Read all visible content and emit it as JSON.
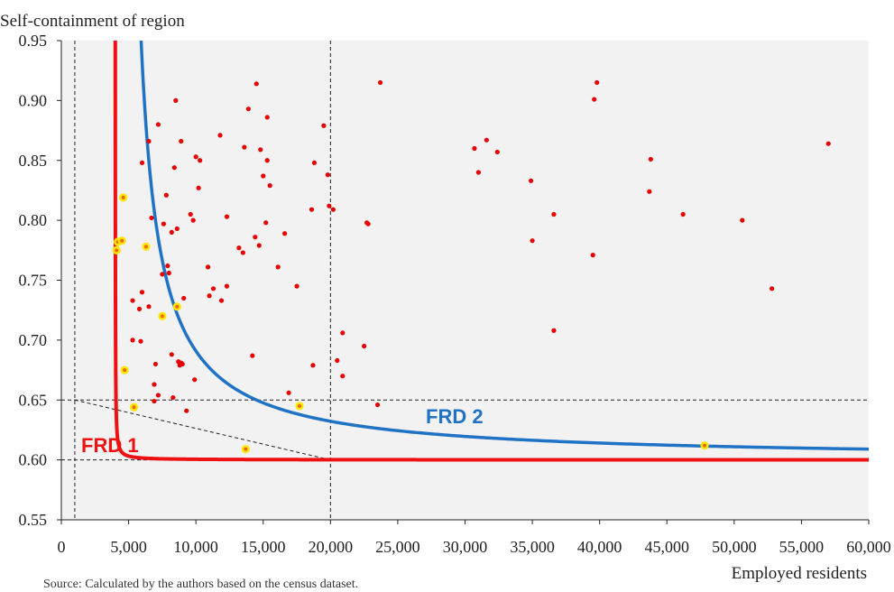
{
  "chart_data": {
    "type": "scatter",
    "ylabel": "Self-containment of region",
    "xlabel": "Employed residents",
    "xlim": [
      0,
      60000
    ],
    "ylim": [
      0.55,
      0.95
    ],
    "x_ticks": [
      0,
      5000,
      10000,
      15000,
      20000,
      25000,
      30000,
      35000,
      40000,
      45000,
      50000,
      55000,
      60000
    ],
    "x_tick_labels": [
      "0",
      "5,000",
      "10,000",
      "15,000",
      "20,000",
      "25,000",
      "30,000",
      "35,000",
      "40,000",
      "45,000",
      "50,000",
      "55,000",
      "60,000"
    ],
    "y_ticks": [
      0.55,
      0.6,
      0.65,
      0.7,
      0.75,
      0.8,
      0.85,
      0.9,
      0.95
    ],
    "y_tick_labels": [
      "0.55",
      "0.60",
      "0.65",
      "0.70",
      "0.75",
      "0.80",
      "0.85",
      "0.90",
      "0.95"
    ],
    "plot_background": "#f2f2f2",
    "reference_lines": {
      "horizontal": [
        0.6,
        0.65
      ],
      "vertical": [
        1000,
        20000
      ],
      "diagonal": [
        [
          1000,
          0.65
        ],
        [
          20000,
          0.6
        ]
      ]
    },
    "curves": [
      {
        "label": "FRD 1",
        "color": "#ee1111",
        "asymptote_x": 4000,
        "asymptote_y": 0.6,
        "k": 3.2,
        "x_end": 60000
      },
      {
        "label": "FRD 2",
        "color": "#1f72c4",
        "asymptote_x": 4500,
        "asymptote_y": 0.6,
        "k": 500,
        "x_end": 60000
      }
    ],
    "points": [
      {
        "x": 8500,
        "y": 0.9
      },
      {
        "x": 7200,
        "y": 0.88
      },
      {
        "x": 6500,
        "y": 0.866
      },
      {
        "x": 6000,
        "y": 0.848
      },
      {
        "x": 8400,
        "y": 0.844
      },
      {
        "x": 8900,
        "y": 0.866
      },
      {
        "x": 10000,
        "y": 0.853
      },
      {
        "x": 10300,
        "y": 0.85
      },
      {
        "x": 10200,
        "y": 0.827
      },
      {
        "x": 11800,
        "y": 0.871
      },
      {
        "x": 13600,
        "y": 0.861
      },
      {
        "x": 13900,
        "y": 0.893
      },
      {
        "x": 14500,
        "y": 0.914
      },
      {
        "x": 14800,
        "y": 0.859
      },
      {
        "x": 15300,
        "y": 0.886
      },
      {
        "x": 15300,
        "y": 0.85
      },
      {
        "x": 15000,
        "y": 0.837
      },
      {
        "x": 15500,
        "y": 0.829
      },
      {
        "x": 18800,
        "y": 0.848
      },
      {
        "x": 19500,
        "y": 0.879
      },
      {
        "x": 19800,
        "y": 0.838
      },
      {
        "x": 19900,
        "y": 0.812
      },
      {
        "x": 20200,
        "y": 0.809
      },
      {
        "x": 18600,
        "y": 0.809
      },
      {
        "x": 23700,
        "y": 0.915
      },
      {
        "x": 30700,
        "y": 0.86
      },
      {
        "x": 31600,
        "y": 0.867
      },
      {
        "x": 32400,
        "y": 0.857
      },
      {
        "x": 31000,
        "y": 0.84
      },
      {
        "x": 34900,
        "y": 0.833
      },
      {
        "x": 39600,
        "y": 0.901
      },
      {
        "x": 39800,
        "y": 0.915
      },
      {
        "x": 43800,
        "y": 0.851
      },
      {
        "x": 43700,
        "y": 0.824
      },
      {
        "x": 57000,
        "y": 0.864
      },
      {
        "x": 6700,
        "y": 0.802
      },
      {
        "x": 7600,
        "y": 0.797
      },
      {
        "x": 7800,
        "y": 0.821
      },
      {
        "x": 8200,
        "y": 0.79
      },
      {
        "x": 8600,
        "y": 0.793
      },
      {
        "x": 9600,
        "y": 0.805
      },
      {
        "x": 9800,
        "y": 0.8
      },
      {
        "x": 12300,
        "y": 0.803
      },
      {
        "x": 13200,
        "y": 0.777
      },
      {
        "x": 13500,
        "y": 0.773
      },
      {
        "x": 14400,
        "y": 0.786
      },
      {
        "x": 14700,
        "y": 0.779
      },
      {
        "x": 15200,
        "y": 0.798
      },
      {
        "x": 16600,
        "y": 0.789
      },
      {
        "x": 22700,
        "y": 0.798
      },
      {
        "x": 22800,
        "y": 0.797
      },
      {
        "x": 35000,
        "y": 0.783
      },
      {
        "x": 36600,
        "y": 0.805
      },
      {
        "x": 39500,
        "y": 0.771
      },
      {
        "x": 46200,
        "y": 0.805
      },
      {
        "x": 50600,
        "y": 0.8
      },
      {
        "x": 52800,
        "y": 0.743
      },
      {
        "x": 36600,
        "y": 0.708
      },
      {
        "x": 7500,
        "y": 0.755
      },
      {
        "x": 7900,
        "y": 0.762
      },
      {
        "x": 8000,
        "y": 0.756
      },
      {
        "x": 6000,
        "y": 0.74
      },
      {
        "x": 5800,
        "y": 0.726
      },
      {
        "x": 6500,
        "y": 0.728
      },
      {
        "x": 5300,
        "y": 0.733
      },
      {
        "x": 9100,
        "y": 0.735
      },
      {
        "x": 10900,
        "y": 0.761
      },
      {
        "x": 11000,
        "y": 0.737
      },
      {
        "x": 11300,
        "y": 0.743
      },
      {
        "x": 11900,
        "y": 0.733
      },
      {
        "x": 12300,
        "y": 0.745
      },
      {
        "x": 16100,
        "y": 0.761
      },
      {
        "x": 17500,
        "y": 0.745
      },
      {
        "x": 5300,
        "y": 0.7
      },
      {
        "x": 5900,
        "y": 0.699
      },
      {
        "x": 9900,
        "y": 0.667
      },
      {
        "x": 8200,
        "y": 0.688
      },
      {
        "x": 8700,
        "y": 0.682
      },
      {
        "x": 8900,
        "y": 0.681
      },
      {
        "x": 9000,
        "y": 0.68
      },
      {
        "x": 8800,
        "y": 0.679
      },
      {
        "x": 7000,
        "y": 0.68
      },
      {
        "x": 6900,
        "y": 0.663
      },
      {
        "x": 7200,
        "y": 0.654
      },
      {
        "x": 6900,
        "y": 0.649
      },
      {
        "x": 8300,
        "y": 0.652
      },
      {
        "x": 9300,
        "y": 0.641
      },
      {
        "x": 14200,
        "y": 0.687
      },
      {
        "x": 18700,
        "y": 0.679
      },
      {
        "x": 16900,
        "y": 0.656
      },
      {
        "x": 20900,
        "y": 0.706
      },
      {
        "x": 20500,
        "y": 0.683
      },
      {
        "x": 20900,
        "y": 0.67
      },
      {
        "x": 22500,
        "y": 0.695
      },
      {
        "x": 23500,
        "y": 0.646
      }
    ],
    "highlighted_points": [
      {
        "x": 4600,
        "y": 0.819
      },
      {
        "x": 4200,
        "y": 0.782
      },
      {
        "x": 4500,
        "y": 0.783
      },
      {
        "x": 4100,
        "y": 0.775
      },
      {
        "x": 6300,
        "y": 0.778
      },
      {
        "x": 8600,
        "y": 0.728
      },
      {
        "x": 7500,
        "y": 0.72
      },
      {
        "x": 4700,
        "y": 0.675
      },
      {
        "x": 5400,
        "y": 0.644
      },
      {
        "x": 17700,
        "y": 0.645
      },
      {
        "x": 13700,
        "y": 0.609
      },
      {
        "x": 47800,
        "y": 0.612
      }
    ],
    "point_color": "#e60000",
    "highlight_fill": "#ffe600",
    "highlight_center": "#ee6a00"
  },
  "source_note": "Source: Calculated by the authors based on the census dataset."
}
